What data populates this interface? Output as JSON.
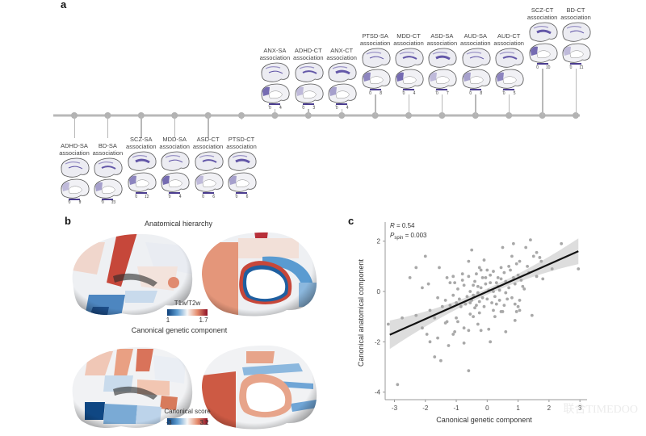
{
  "figure": {
    "panels": {
      "a": {
        "letter": "a"
      },
      "b": {
        "letter": "b"
      },
      "c": {
        "letter": "c"
      }
    },
    "timeline": {
      "below": [
        {
          "disorder": "ADHD-SA",
          "sub": "association",
          "scale_min": "0",
          "scale_max": "9"
        },
        {
          "disorder": "BD-SA",
          "sub": "association",
          "scale_min": "0",
          "scale_max": "13"
        },
        {
          "disorder": "SCZ-SA",
          "sub": "association",
          "scale_min": "0",
          "scale_max": "12"
        },
        {
          "disorder": "MDD-SA",
          "sub": "association",
          "scale_min": "0",
          "scale_max": "4"
        },
        {
          "disorder": "ASD-CT",
          "sub": "association",
          "scale_min": "0",
          "scale_max": "6"
        },
        {
          "disorder": "PTSD-CT",
          "sub": "association",
          "scale_min": "0",
          "scale_max": "6"
        }
      ],
      "above": [
        {
          "disorder": "ANX-SA",
          "sub": "association",
          "scale_min": "0",
          "scale_max": "4"
        },
        {
          "disorder": "ADHD-CT",
          "sub": "association",
          "scale_min": "0",
          "scale_max": "3"
        },
        {
          "disorder": "ANX-CT",
          "sub": "association",
          "scale_min": "0",
          "scale_max": "4"
        },
        {
          "disorder": "PTSD-SA",
          "sub": "association",
          "scale_min": "0",
          "scale_max": "8"
        },
        {
          "disorder": "MDD-CT",
          "sub": "association",
          "scale_min": "0",
          "scale_max": "4"
        },
        {
          "disorder": "ASD-SA",
          "sub": "association",
          "scale_min": "0",
          "scale_max": "7"
        },
        {
          "disorder": "AUD-SA",
          "sub": "association",
          "scale_min": "0",
          "scale_max": "8"
        },
        {
          "disorder": "AUD-CT",
          "sub": "association",
          "scale_min": "0",
          "scale_max": "5"
        },
        {
          "disorder": "SCZ-CT",
          "sub": "association",
          "scale_min": "0",
          "scale_max": "10"
        },
        {
          "disorder": "BD-CT",
          "sub": "association",
          "scale_min": "0",
          "scale_max": "11"
        }
      ]
    },
    "panel_b": {
      "top_title": "Anatomical hierarchy",
      "top_cbar_label": "T1w/T2w",
      "top_cbar_min": "1",
      "top_cbar_max": "1.7",
      "bottom_title": "Canonical genetic component",
      "bottom_cbar_label": "Canonical score",
      "bottom_cbar_min": "-3",
      "bottom_cbar_max": "3.2",
      "colors": {
        "low": "#1f5fa0",
        "mid": "#f5f5f5",
        "high": "#b2182b"
      }
    },
    "watermark": "联合TIMEDOO"
  },
  "chart_data": {
    "type": "scatter",
    "title": "",
    "xlabel": "Canonical genetic component",
    "ylabel": "Canonical anatomical component",
    "xlim": [
      -3.3,
      3.1
    ],
    "ylim": [
      -4.3,
      2.6
    ],
    "xticks": [
      -3,
      -2,
      -1,
      0,
      1,
      2,
      3
    ],
    "yticks": [
      -4,
      -2,
      0,
      2
    ],
    "annotations": {
      "r_label": "R",
      "r_value": "= 0.54",
      "p_label": "P",
      "p_sub": "spin",
      "p_value": "= 0.003"
    },
    "fit_line": {
      "x": [
        -3.15,
        2.95
      ],
      "y": [
        -1.72,
        1.6
      ]
    },
    "point_color": "#a8a8a8",
    "line_color": "#111111",
    "band_color": "#d9d9d9",
    "points": [
      [
        -3.2,
        -1.3
      ],
      [
        -2.9,
        -3.7
      ],
      [
        -2.1,
        -1.45
      ],
      [
        -1.95,
        -1.7
      ],
      [
        -1.85,
        -2.0
      ],
      [
        -1.7,
        -2.6
      ],
      [
        -1.6,
        -1.85
      ],
      [
        -1.5,
        -2.75
      ],
      [
        -1.35,
        -1.25
      ],
      [
        -1.3,
        -1.2
      ],
      [
        -1.25,
        -2.15
      ],
      [
        -1.1,
        -1.7
      ],
      [
        -1.05,
        -1.6
      ],
      [
        -1.0,
        -1.05
      ],
      [
        -0.95,
        -1.2
      ],
      [
        -0.75,
        -1.45
      ],
      [
        -0.75,
        -2.05
      ],
      [
        -0.6,
        -1.55
      ],
      [
        -0.6,
        -3.15
      ],
      [
        -0.3,
        -1.3
      ],
      [
        -0.2,
        -1.55
      ],
      [
        0.05,
        -1.5
      ],
      [
        0.1,
        -2.0
      ],
      [
        0.6,
        -1.6
      ],
      [
        0.9,
        -1.15
      ],
      [
        1.45,
        -0.95
      ],
      [
        -0.55,
        -0.9
      ],
      [
        -0.4,
        -0.65
      ],
      [
        0.2,
        -0.75
      ],
      [
        0.45,
        -0.8
      ],
      [
        0.5,
        -0.8
      ],
      [
        0.95,
        -0.8
      ],
      [
        1.05,
        -0.75
      ],
      [
        -2.5,
        0.55
      ],
      [
        -2.3,
        0.95
      ],
      [
        -2.0,
        1.4
      ],
      [
        -1.55,
        0.95
      ],
      [
        -1.9,
        0.3
      ],
      [
        -2.1,
        0.15
      ],
      [
        -1.3,
        0.55
      ],
      [
        -1.2,
        0.35
      ],
      [
        -1.1,
        0.6
      ],
      [
        -0.95,
        0.1
      ],
      [
        -0.8,
        0.45
      ],
      [
        -0.6,
        1.2
      ],
      [
        -0.5,
        1.65
      ],
      [
        -0.4,
        0.4
      ],
      [
        -0.35,
        0.7
      ],
      [
        -0.3,
        0.2
      ],
      [
        -0.25,
        0.95
      ],
      [
        -0.2,
        0.85
      ],
      [
        -0.15,
        0.55
      ],
      [
        -0.1,
        1.25
      ],
      [
        -0.05,
        0.3
      ],
      [
        0.0,
        0.85
      ],
      [
        0.05,
        0.05
      ],
      [
        0.1,
        0.65
      ],
      [
        0.2,
        0.8
      ],
      [
        0.3,
        0.35
      ],
      [
        0.35,
        0.55
      ],
      [
        0.4,
        0.05
      ],
      [
        0.45,
        0.95
      ],
      [
        0.5,
        1.75
      ],
      [
        0.55,
        0.75
      ],
      [
        0.6,
        -0.05
      ],
      [
        0.7,
        1.0
      ],
      [
        0.75,
        0.85
      ],
      [
        0.8,
        1.4
      ],
      [
        0.85,
        1.9
      ],
      [
        0.9,
        0.3
      ],
      [
        0.95,
        1.1
      ],
      [
        1.0,
        0.65
      ],
      [
        1.05,
        1.2
      ],
      [
        1.1,
        0.45
      ],
      [
        1.15,
        0.2
      ],
      [
        1.2,
        0.1
      ],
      [
        1.25,
        1.75
      ],
      [
        1.3,
        1.0
      ],
      [
        1.35,
        0.75
      ],
      [
        1.4,
        2.05
      ],
      [
        1.5,
        1.4
      ],
      [
        1.6,
        0.6
      ],
      [
        1.7,
        1.35
      ],
      [
        1.75,
        1.2
      ],
      [
        1.8,
        0.5
      ],
      [
        2.1,
        0.9
      ],
      [
        2.4,
        1.9
      ],
      [
        2.95,
        0.9
      ],
      [
        -1.6,
        -0.25
      ],
      [
        -1.45,
        -0.6
      ],
      [
        -1.35,
        -0.35
      ],
      [
        -1.2,
        -0.55
      ],
      [
        -1.1,
        -0.15
      ],
      [
        -1.0,
        -0.45
      ],
      [
        -0.9,
        -0.3
      ],
      [
        -0.85,
        -0.6
      ],
      [
        -0.7,
        -0.5
      ],
      [
        -0.65,
        -0.2
      ],
      [
        -0.55,
        -0.45
      ],
      [
        -0.5,
        -0.35
      ],
      [
        -0.45,
        -0.15
      ],
      [
        -0.35,
        -0.55
      ],
      [
        -0.3,
        -0.05
      ],
      [
        -0.25,
        -0.4
      ],
      [
        -0.15,
        -0.25
      ],
      [
        -0.1,
        -0.6
      ],
      [
        0.0,
        -0.3
      ],
      [
        0.15,
        -0.45
      ],
      [
        0.25,
        -0.2
      ],
      [
        0.3,
        -0.5
      ],
      [
        0.4,
        -0.35
      ],
      [
        0.55,
        -0.55
      ],
      [
        0.65,
        -0.3
      ],
      [
        0.8,
        -0.25
      ],
      [
        0.9,
        -0.5
      ],
      [
        1.0,
        -0.6
      ],
      [
        1.05,
        -0.35
      ],
      [
        -0.75,
        0.25
      ],
      [
        -0.55,
        0.0
      ],
      [
        -0.45,
        0.25
      ],
      [
        -0.2,
        0.15
      ],
      [
        0.1,
        0.35
      ],
      [
        0.2,
        0.0
      ],
      [
        0.35,
        0.2
      ],
      [
        0.6,
        0.4
      ],
      [
        0.7,
        0.15
      ],
      [
        0.85,
        0.55
      ],
      [
        -2.75,
        -1.05
      ],
      [
        -2.3,
        -0.95
      ],
      [
        -1.85,
        -0.75
      ],
      [
        -1.7,
        -1.05
      ],
      [
        -0.45,
        -1.0
      ],
      [
        0.25,
        -1.0
      ],
      [
        -0.25,
        -0.85
      ],
      [
        1.6,
        1.55
      ],
      [
        0.45,
        0.5
      ],
      [
        -0.05,
        0.55
      ],
      [
        -0.6,
        0.6
      ],
      [
        -0.8,
        0.7
      ],
      [
        -1.05,
        0.35
      ]
    ]
  }
}
